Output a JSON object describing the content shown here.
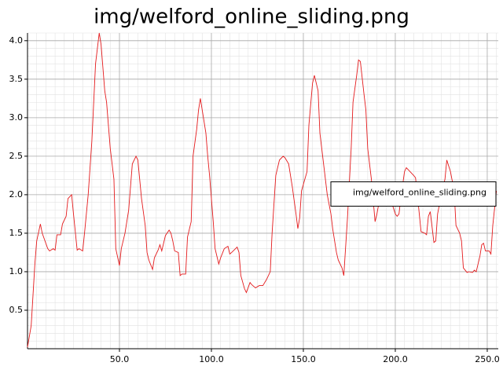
{
  "chart_data": {
    "type": "line",
    "title": "img/welford_online_sliding.png",
    "x": [
      0,
      2,
      4,
      5,
      7,
      8,
      11,
      12,
      14,
      15,
      16,
      18,
      19,
      21,
      22,
      24,
      25,
      27,
      28,
      30,
      31,
      33,
      35,
      37,
      39,
      40,
      42,
      43,
      45,
      47,
      48,
      50,
      51,
      53,
      55,
      57,
      59,
      60,
      62,
      64,
      65,
      66,
      68,
      69,
      71,
      72,
      73,
      75,
      77,
      78,
      79,
      80,
      82,
      83,
      84,
      86,
      87,
      89,
      90,
      92,
      93,
      94,
      95,
      97,
      98,
      99,
      101,
      102,
      104,
      105,
      107,
      109,
      110,
      111,
      114,
      115,
      116,
      118,
      119,
      121,
      122,
      124,
      126,
      128,
      130,
      132,
      133,
      135,
      137,
      139,
      140,
      142,
      144,
      146,
      147,
      148,
      149,
      152,
      153,
      155,
      156,
      158,
      159,
      161,
      163,
      165,
      166,
      168,
      169,
      171,
      172,
      174,
      176,
      177,
      179,
      180,
      181,
      183,
      184,
      185,
      187,
      189,
      190,
      191,
      193,
      195,
      197,
      198,
      200,
      201,
      202,
      203,
      205,
      206,
      208,
      210,
      211,
      212,
      214,
      216,
      217,
      218,
      219,
      221,
      222,
      223,
      225,
      227,
      228,
      230,
      232,
      233,
      235,
      236,
      237,
      239,
      240,
      242,
      243,
      244,
      246,
      247,
      248,
      249,
      251,
      252,
      253,
      255
    ],
    "series": [
      {
        "name": "img/welford_online_sliding.png",
        "color": "#e41a1c",
        "values": [
          0.02,
          0.3,
          1.1,
          1.4,
          1.62,
          1.5,
          1.3,
          1.27,
          1.3,
          1.28,
          1.48,
          1.48,
          1.62,
          1.72,
          1.95,
          2.0,
          1.75,
          1.28,
          1.3,
          1.27,
          1.5,
          2.0,
          2.7,
          3.7,
          4.1,
          3.95,
          3.35,
          3.2,
          2.6,
          2.2,
          1.3,
          1.08,
          1.3,
          1.5,
          1.8,
          2.4,
          2.5,
          2.45,
          1.95,
          1.6,
          1.25,
          1.15,
          1.03,
          1.18,
          1.28,
          1.35,
          1.27,
          1.47,
          1.54,
          1.5,
          1.4,
          1.27,
          1.25,
          0.95,
          0.97,
          0.97,
          1.45,
          1.65,
          2.5,
          2.85,
          3.1,
          3.25,
          3.1,
          2.8,
          2.5,
          2.25,
          1.65,
          1.3,
          1.1,
          1.18,
          1.3,
          1.33,
          1.23,
          1.25,
          1.32,
          1.25,
          0.95,
          0.78,
          0.73,
          0.86,
          0.83,
          0.79,
          0.82,
          0.82,
          0.9,
          1.0,
          1.5,
          2.25,
          2.45,
          2.5,
          2.48,
          2.4,
          2.1,
          1.75,
          1.56,
          1.7,
          2.05,
          2.3,
          2.9,
          3.45,
          3.55,
          3.35,
          2.8,
          2.4,
          2.0,
          1.75,
          1.55,
          1.25,
          1.15,
          1.05,
          0.95,
          1.7,
          2.6,
          3.2,
          3.55,
          3.75,
          3.73,
          3.3,
          3.1,
          2.6,
          2.2,
          1.65,
          1.75,
          1.88,
          1.9,
          1.95,
          1.9,
          1.9,
          1.75,
          1.72,
          1.75,
          1.95,
          2.3,
          2.35,
          2.3,
          2.25,
          2.22,
          2.0,
          1.52,
          1.5,
          1.48,
          1.72,
          1.78,
          1.38,
          1.4,
          1.75,
          2.0,
          2.2,
          2.45,
          2.3,
          2.05,
          1.6,
          1.5,
          1.4,
          1.05,
          0.99,
          1.0,
          0.99,
          1.02,
          1.0,
          1.2,
          1.35,
          1.37,
          1.27,
          1.27,
          1.23,
          1.6,
          2.05
        ]
      }
    ],
    "xlim": [
      0,
      256
    ],
    "ylim": [
      0,
      4.1
    ],
    "xticks": [
      {
        "value": 50,
        "label": "50.0"
      },
      {
        "value": 100,
        "label": "100.0"
      },
      {
        "value": 150,
        "label": "150.0"
      },
      {
        "value": 200,
        "label": "200.0"
      },
      {
        "value": 250,
        "label": "250.0"
      }
    ],
    "yticks": [
      0.5,
      {
        "value": 1,
        "label": "1.0"
      },
      1.5,
      {
        "value": 2,
        "label": "2.0"
      },
      2.5,
      {
        "value": 3,
        "label": "3.0"
      },
      3.5,
      {
        "value": 4,
        "label": "4.0"
      }
    ],
    "xminorticks": [
      5,
      10,
      15,
      20,
      25,
      30,
      35,
      40,
      45,
      55,
      60,
      65,
      70,
      75,
      80,
      85,
      90,
      95,
      105,
      110,
      115,
      120,
      125,
      130,
      135,
      140,
      145,
      155,
      160,
      165,
      170,
      175,
      180,
      185,
      190,
      195,
      205,
      210,
      215,
      220,
      225,
      230,
      235,
      240,
      245,
      255
    ],
    "yminorticks": [
      0.1,
      0.2,
      0.3,
      0.4,
      0.6,
      0.7,
      0.8,
      0.9,
      1.1,
      1.2,
      1.3,
      1.4,
      1.6,
      1.7,
      1.8,
      1.9,
      2.1,
      2.2,
      2.3,
      2.4,
      2.6,
      2.7,
      2.8,
      2.9,
      3.1,
      3.2,
      3.3,
      3.4,
      3.6,
      3.7,
      3.8,
      3.9,
      4.1
    ],
    "grid": true,
    "legend": "center right"
  }
}
